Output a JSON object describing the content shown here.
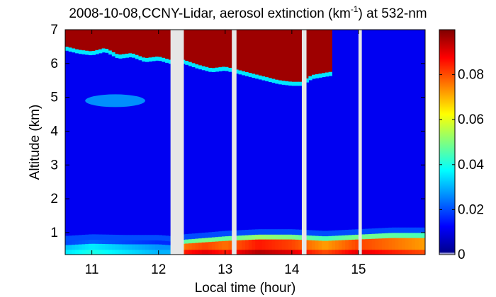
{
  "chart_data": {
    "type": "heatmap",
    "title_prefix": "2008-10-08,CCNY-Lidar, aerosol extinction (km",
    "title_sup": "-1",
    "title_suffix": ") at 532-nm",
    "xlabel": "Local time (hour)",
    "ylabel": "Altitude (km)",
    "xlim": [
      10.6,
      16.0
    ],
    "ylim": [
      0.35,
      7.0
    ],
    "x_ticks": [
      11,
      12,
      13,
      14,
      15
    ],
    "y_ticks": [
      1,
      2,
      3,
      4,
      5,
      6,
      7
    ],
    "colorbar": {
      "min": 0,
      "max": 0.1,
      "ticks": [
        0,
        0.02,
        0.04,
        0.06,
        0.08
      ],
      "tick_labels": [
        "0",
        "0.02",
        "0.04",
        "0.06",
        "0.08"
      ],
      "colormap": "jet"
    },
    "data_gaps_hours": [
      [
        12.18,
        12.38
      ],
      [
        13.1,
        13.17
      ],
      [
        14.15,
        14.22
      ],
      [
        15.0,
        15.05
      ]
    ],
    "cloud_base_profile": {
      "x": [
        10.6,
        10.8,
        11.0,
        11.2,
        11.4,
        11.6,
        11.8,
        12.0,
        12.18,
        12.38,
        12.6,
        12.8,
        13.0,
        13.2,
        13.4,
        13.6,
        13.8,
        14.0,
        14.15,
        14.3,
        14.6
      ],
      "y": [
        6.4,
        6.3,
        6.25,
        6.35,
        6.15,
        6.2,
        6.05,
        6.1,
        6.0,
        6.0,
        5.85,
        5.75,
        5.8,
        5.7,
        5.6,
        5.5,
        5.4,
        5.35,
        5.35,
        5.55,
        5.65
      ]
    },
    "aerosol_layer": {
      "x_start": 10.9,
      "x_end": 11.8,
      "y_center": 4.9,
      "intensity": 0.03
    },
    "boundary_layer": {
      "x": [
        10.6,
        11.0,
        11.5,
        12.0,
        12.18,
        12.38,
        12.7,
        13.0,
        13.5,
        14.0,
        14.5,
        15.0,
        15.5,
        16.0
      ],
      "top_km": [
        0.75,
        0.8,
        0.78,
        0.78,
        0.75,
        0.8,
        0.85,
        0.9,
        0.95,
        0.95,
        0.9,
        0.95,
        1.0,
        1.0
      ],
      "intensity": [
        0.035,
        0.04,
        0.035,
        0.03,
        0.03,
        0.085,
        0.09,
        0.085,
        0.095,
        0.09,
        0.08,
        0.09,
        0.085,
        0.08
      ]
    }
  }
}
